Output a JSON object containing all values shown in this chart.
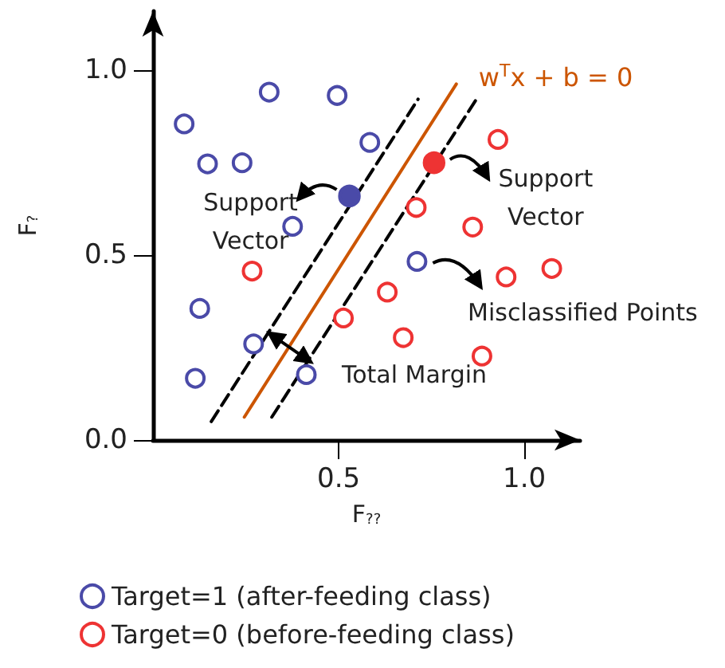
{
  "chart_data": {
    "type": "scatter",
    "xlabel": "F$_{??}$",
    "ylabel": "F$_{?}$",
    "xlim": [
      0,
      1.15
    ],
    "ylim": [
      0,
      1.16
    ],
    "xticks": [
      {
        "value": 0.5,
        "label": "0.5"
      },
      {
        "value": 1.0,
        "label": "1.0"
      }
    ],
    "yticks": [
      {
        "value": 0,
        "label": "0.0"
      },
      {
        "value": 0.5,
        "label": "0.5"
      },
      {
        "value": 1.0,
        "label": "1.0"
      }
    ],
    "grid": false,
    "legend": "bottom",
    "series": [
      {
        "name": "Target=1 (after-feeding class)",
        "marker": "circle",
        "color": "#4a4aa8",
        "x": [
          0.084,
          0.313,
          0.496,
          0.147,
          0.24,
          0.584,
          0.376,
          0.126,
          0.271,
          0.114,
          0.413,
          0.711
        ],
        "values": [
          0.855,
          0.941,
          0.932,
          0.747,
          0.75,
          0.805,
          0.578,
          0.356,
          0.26,
          0.167,
          0.177,
          0.483
        ]
      },
      {
        "name": "Target=0 (before-feeding class)",
        "marker": "circle",
        "color": "#ee3333",
        "x": [
          0.929,
          0.709,
          0.861,
          0.267,
          0.951,
          1.074,
          0.631,
          0.513,
          0.674,
          0.886
        ],
        "values": [
          0.813,
          0.629,
          0.576,
          0.457,
          0.441,
          0.464,
          0.4,
          0.33,
          0.277,
          0.227
        ]
      },
      {
        "marker": "circle",
        "color": "#4a4aa8",
        "x": [
          0.529
        ],
        "values": [
          0.66
        ]
      },
      {
        "marker": "circle",
        "color": "#ee3333",
        "x": [
          0.757
        ],
        "values": [
          0.75
        ]
      },
      {
        "name": "w$^{T}$x + b = 0",
        "type": "line",
        "line_style": "solid",
        "color": "#cc5500",
        "x": [
          0.246,
          0.817
        ],
        "values": [
          0.062,
          0.963
        ]
      },
      {
        "type": "line",
        "line_style": "dashed",
        "color": "#000000",
        "x": [
          0.157,
          0.714
        ],
        "values": [
          0.05,
          0.922
        ]
      },
      {
        "type": "line",
        "line_style": "dashed",
        "color": "#000000",
        "x": [
          0.32,
          0.877
        ],
        "values": [
          0.062,
          0.931
        ]
      }
    ],
    "annotations": [
      {
        "text": "Support\nVector",
        "x": 0.529,
        "y": 0.66
      },
      {
        "text": "Support\nVector",
        "x": 0.757,
        "y": 0.75
      },
      {
        "text": "Misclassified Points",
        "x": 0.711,
        "y": 0.483
      },
      {
        "text": "Total Margin",
        "x": 0.369,
        "y": 0.25
      }
    ]
  }
}
